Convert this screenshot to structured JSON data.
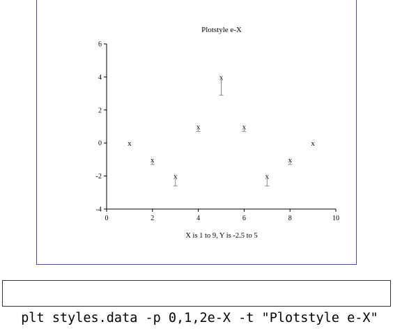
{
  "chart_data": {
    "type": "scatter",
    "title": "Plotstyle e-X",
    "xlabel": "X is 1 to 9,  Y is -2.5 to 5",
    "ylabel": "",
    "xlim": [
      0,
      10
    ],
    "ylim": [
      -4,
      6
    ],
    "x_ticks": [
      0,
      2,
      4,
      6,
      8,
      10
    ],
    "y_ticks": [
      -4,
      -2,
      0,
      2,
      4,
      6
    ],
    "marker": "x",
    "points": [
      {
        "x": 1,
        "y": 0,
        "err": 0
      },
      {
        "x": 2,
        "y": -1,
        "err": 0.3
      },
      {
        "x": 3,
        "y": -2,
        "err": 0.6
      },
      {
        "x": 4,
        "y": 1,
        "err": 0.3
      },
      {
        "x": 5,
        "y": 4,
        "err": 1.1
      },
      {
        "x": 6,
        "y": 1,
        "err": 0.3
      },
      {
        "x": 7,
        "y": -2,
        "err": 0.6
      },
      {
        "x": 8,
        "y": -1,
        "err": 0.3
      },
      {
        "x": 9,
        "y": 0,
        "err": 0
      }
    ],
    "colors": {
      "axis": "#000000",
      "marker": "#000000",
      "errorbar": "#888888",
      "frame": "#4a4ab8"
    }
  },
  "command": {
    "text": "plt styles.data -p 0,1,2e-X -t \"Plotstyle e-X\""
  }
}
